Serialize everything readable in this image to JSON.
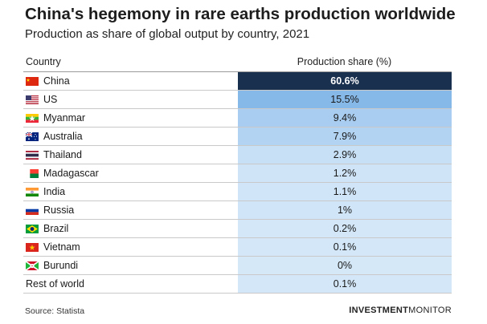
{
  "header": {
    "title": "China's hegemony in rare earths production worldwide",
    "subtitle": "Production as share of global output by country, 2021"
  },
  "chart_data": {
    "type": "table",
    "columns": [
      "Country",
      "Production share (%)"
    ],
    "rows": [
      {
        "country": "China",
        "share": 60.6,
        "label": "60.6%",
        "flag": "china-flag-icon",
        "bg": "#19304f",
        "fg": "#ffffff",
        "bold": true
      },
      {
        "country": "US",
        "share": 15.5,
        "label": "15.5%",
        "flag": "us-flag-icon",
        "bg": "#86b8e8",
        "fg": "#1a1a1a"
      },
      {
        "country": "Myanmar",
        "share": 9.4,
        "label": "9.4%",
        "flag": "myanmar-flag-icon",
        "bg": "#a9cdf0",
        "fg": "#1a1a1a"
      },
      {
        "country": "Australia",
        "share": 7.9,
        "label": "7.9%",
        "flag": "australia-flag-icon",
        "bg": "#b2d3f2",
        "fg": "#1a1a1a"
      },
      {
        "country": "Thailand",
        "share": 2.9,
        "label": "2.9%",
        "flag": "thailand-flag-icon",
        "bg": "#c8e0f6",
        "fg": "#1a1a1a"
      },
      {
        "country": "Madagascar",
        "share": 1.2,
        "label": "1.2%",
        "flag": "madagascar-flag-icon",
        "bg": "#cfe4f7",
        "fg": "#1a1a1a"
      },
      {
        "country": "India",
        "share": 1.1,
        "label": "1.1%",
        "flag": "india-flag-icon",
        "bg": "#d0e5f7",
        "fg": "#1a1a1a"
      },
      {
        "country": "Russia",
        "share": 1,
        "label": "1%",
        "flag": "russia-flag-icon",
        "bg": "#d0e5f7",
        "fg": "#1a1a1a"
      },
      {
        "country": "Brazil",
        "share": 0.2,
        "label": "0.2%",
        "flag": "brazil-flag-icon",
        "bg": "#d3e7f8",
        "fg": "#1a1a1a"
      },
      {
        "country": "Vietnam",
        "share": 0.1,
        "label": "0.1%",
        "flag": "vietnam-flag-icon",
        "bg": "#d3e7f8",
        "fg": "#1a1a1a"
      },
      {
        "country": "Burundi",
        "share": 0,
        "label": "0%",
        "flag": "burundi-flag-icon",
        "bg": "#d4e8f8",
        "fg": "#1a1a1a"
      },
      {
        "country": "Rest of world",
        "share": 0.1,
        "label": "0.1%",
        "flag": "",
        "bg": "#d3e7f8",
        "fg": "#1a1a1a"
      }
    ]
  },
  "footer": {
    "source": "Source: Statista",
    "brand_bold": "INVESTMENT",
    "brand_rest": "MONITOR"
  }
}
